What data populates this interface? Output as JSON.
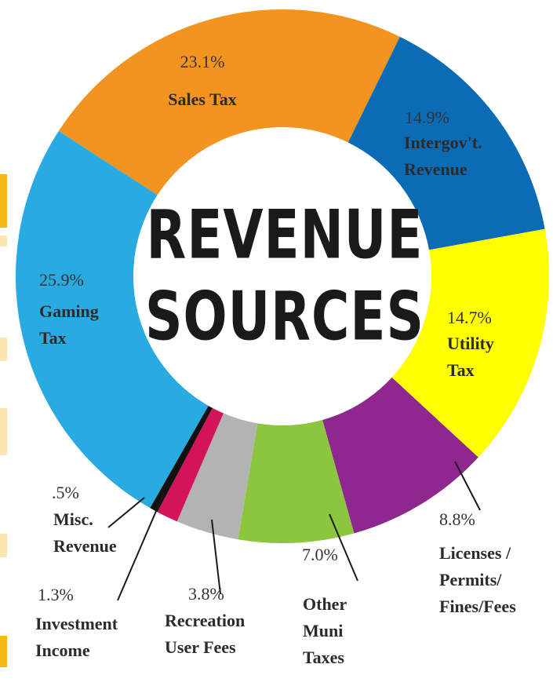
{
  "chart_data": {
    "type": "donut",
    "title": "REVENUE SOURCES",
    "categories": [
      "Sales Tax",
      "Intergov't. Revenue",
      "Utility Tax",
      "Licenses / Permits/ Fines/Fees",
      "Other Muni Taxes",
      "Recreation User Fees",
      "Investment Income",
      "Misc. Revenue",
      "Gaming Tax"
    ],
    "values": [
      23.1,
      14.9,
      14.7,
      8.8,
      7.0,
      3.8,
      1.3,
      0.5,
      25.9
    ],
    "value_labels": [
      "23.1%",
      "14.9%",
      "14.7%",
      "8.8%",
      "7.0%",
      "3.8%",
      "1.3%",
      ".5%",
      "25.9%"
    ],
    "colors": [
      "#f39320",
      "#0b6bb5",
      "#ffff00",
      "#8e278e",
      "#8cc63f",
      "#b3b3b3",
      "#d4145a",
      "#111111",
      "#29abe2"
    ]
  }
}
